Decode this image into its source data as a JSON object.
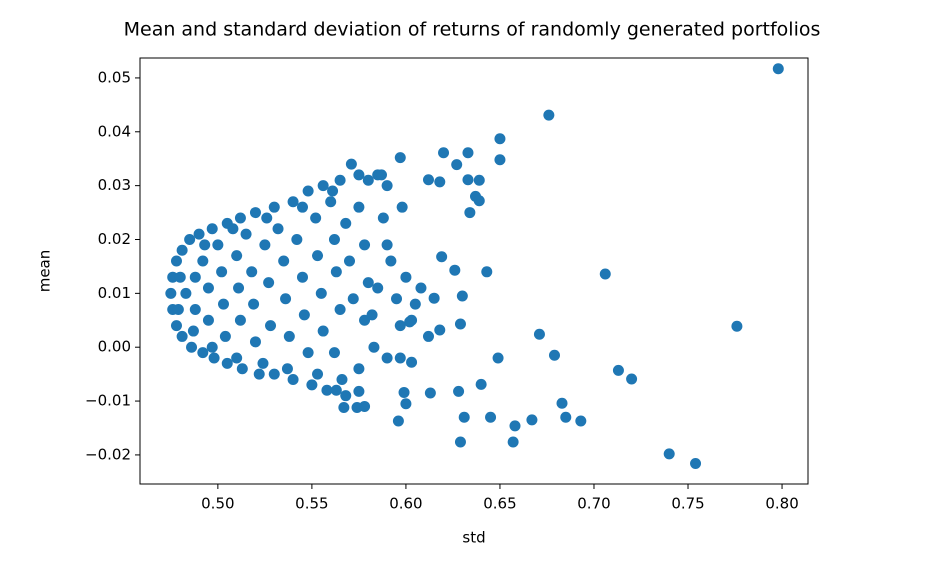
{
  "chart_data": {
    "type": "scatter",
    "title": "Mean and standard deviation of returns of randomly generated portfolios",
    "x_label": "std",
    "y_label": "mean",
    "color": "#1f77b4",
    "xlim": [
      0.4586,
      0.8138
    ],
    "ylim": [
      -0.0254,
      0.0537
    ],
    "xticks": [
      {
        "value": 0.5,
        "label": "0.50"
      },
      0.55,
      {
        "value": 0.6,
        "label": "0.60"
      },
      0.65,
      {
        "value": 0.7,
        "label": "0.70"
      },
      0.75,
      {
        "value": 0.8,
        "label": "0.80"
      }
    ],
    "yticks": [
      {
        "value": -0.02,
        "label": "−0.02"
      },
      {
        "value": -0.01,
        "label": "−0.01"
      },
      {
        "value": 0,
        "label": "0.00"
      },
      0.01,
      0.02,
      0.03,
      0.04,
      0.05
    ],
    "x": [
      0.798,
      0.676,
      0.65,
      0.706,
      0.776,
      0.74,
      0.754,
      0.713,
      0.72,
      0.671,
      0.679,
      0.649,
      0.683,
      0.685,
      0.693,
      0.667,
      0.658,
      0.657,
      0.645,
      0.629,
      0.631,
      0.628,
      0.64,
      0.613,
      0.596,
      0.6,
      0.599,
      0.574,
      0.567,
      0.575,
      0.65,
      0.633,
      0.62,
      0.627,
      0.633,
      0.639,
      0.612,
      0.618,
      0.637,
      0.639,
      0.634,
      0.597,
      0.619,
      0.626,
      0.643,
      0.63,
      0.615,
      0.629,
      0.618,
      0.612,
      0.602,
      0.597,
      0.603,
      0.475,
      0.476,
      0.476,
      0.478,
      0.478,
      0.481,
      0.481,
      0.485,
      0.486,
      0.49,
      0.492,
      0.497,
      0.498,
      0.505,
      0.505,
      0.512,
      0.513,
      0.52,
      0.522,
      0.53,
      0.53,
      0.54,
      0.54,
      0.548,
      0.55,
      0.556,
      0.558,
      0.565,
      0.568,
      0.571,
      0.575,
      0.58,
      0.585,
      0.59,
      0.598,
      0.6,
      0.59,
      0.585,
      0.578,
      0.583,
      0.59,
      0.575,
      0.562,
      0.556,
      0.483,
      0.488,
      0.488,
      0.492,
      0.495,
      0.495,
      0.5,
      0.502,
      0.503,
      0.504,
      0.51,
      0.511,
      0.512,
      0.515,
      0.518,
      0.519,
      0.52,
      0.525,
      0.527,
      0.528,
      0.532,
      0.535,
      0.536,
      0.538,
      0.542,
      0.545,
      0.546,
      0.548,
      0.552,
      0.553,
      0.555,
      0.56,
      0.562,
      0.563,
      0.565,
      0.568,
      0.57,
      0.572,
      0.575,
      0.578,
      0.58,
      0.582,
      0.588,
      0.592,
      0.595,
      0.597,
      0.603,
      0.608,
      0.605,
      0.587,
      0.561,
      0.545,
      0.526,
      0.508,
      0.493,
      0.48,
      0.479,
      0.487,
      0.497,
      0.51,
      0.524,
      0.537,
      0.553,
      0.566,
      0.578,
      0.563
    ],
    "values": [
      0.0517,
      0.0431,
      0.0387,
      0.0136,
      0.0039,
      -0.0198,
      -0.0216,
      -0.0043,
      -0.0059,
      0.0024,
      -0.0015,
      -0.002,
      -0.0104,
      -0.013,
      -0.0137,
      -0.0135,
      -0.0146,
      -0.0176,
      -0.013,
      -0.0176,
      -0.013,
      -0.0082,
      -0.0069,
      -0.0085,
      -0.0137,
      -0.0105,
      -0.0084,
      -0.0112,
      -0.0112,
      -0.0082,
      0.0348,
      0.0361,
      0.0361,
      0.0339,
      0.0311,
      0.031,
      0.0311,
      0.0307,
      0.028,
      0.0272,
      0.025,
      0.0352,
      0.0168,
      0.0143,
      0.014,
      0.0095,
      0.0091,
      0.0043,
      0.0032,
      0.002,
      0.0047,
      -0.002,
      -0.0028,
      0.01,
      0.013,
      0.007,
      0.016,
      0.004,
      0.018,
      0.002,
      0.02,
      0.0,
      0.021,
      -0.001,
      0.022,
      -0.002,
      0.023,
      -0.003,
      0.024,
      -0.004,
      0.025,
      -0.005,
      0.026,
      -0.005,
      0.027,
      -0.006,
      0.029,
      -0.007,
      0.03,
      -0.008,
      0.031,
      -0.009,
      0.034,
      0.032,
      0.031,
      0.032,
      0.03,
      0.026,
      0.013,
      0.019,
      0.011,
      0.005,
      0.0,
      -0.002,
      -0.004,
      -0.001,
      0.003,
      0.01,
      0.013,
      0.007,
      0.016,
      0.011,
      0.005,
      0.019,
      0.014,
      0.008,
      0.002,
      0.017,
      0.011,
      0.005,
      0.021,
      0.014,
      0.008,
      0.001,
      0.019,
      0.012,
      0.004,
      0.022,
      0.016,
      0.009,
      0.002,
      0.02,
      0.013,
      0.006,
      -0.001,
      0.024,
      0.017,
      0.01,
      0.027,
      0.02,
      0.014,
      0.007,
      0.023,
      0.016,
      0.009,
      0.026,
      0.019,
      0.012,
      0.006,
      0.024,
      0.016,
      0.009,
      0.004,
      0.005,
      0.011,
      0.008,
      0.032,
      0.029,
      0.026,
      0.024,
      0.022,
      0.019,
      0.013,
      0.007,
      0.003,
      0.0,
      -0.002,
      -0.003,
      -0.004,
      -0.005,
      -0.006,
      -0.011,
      -0.008
    ]
  }
}
